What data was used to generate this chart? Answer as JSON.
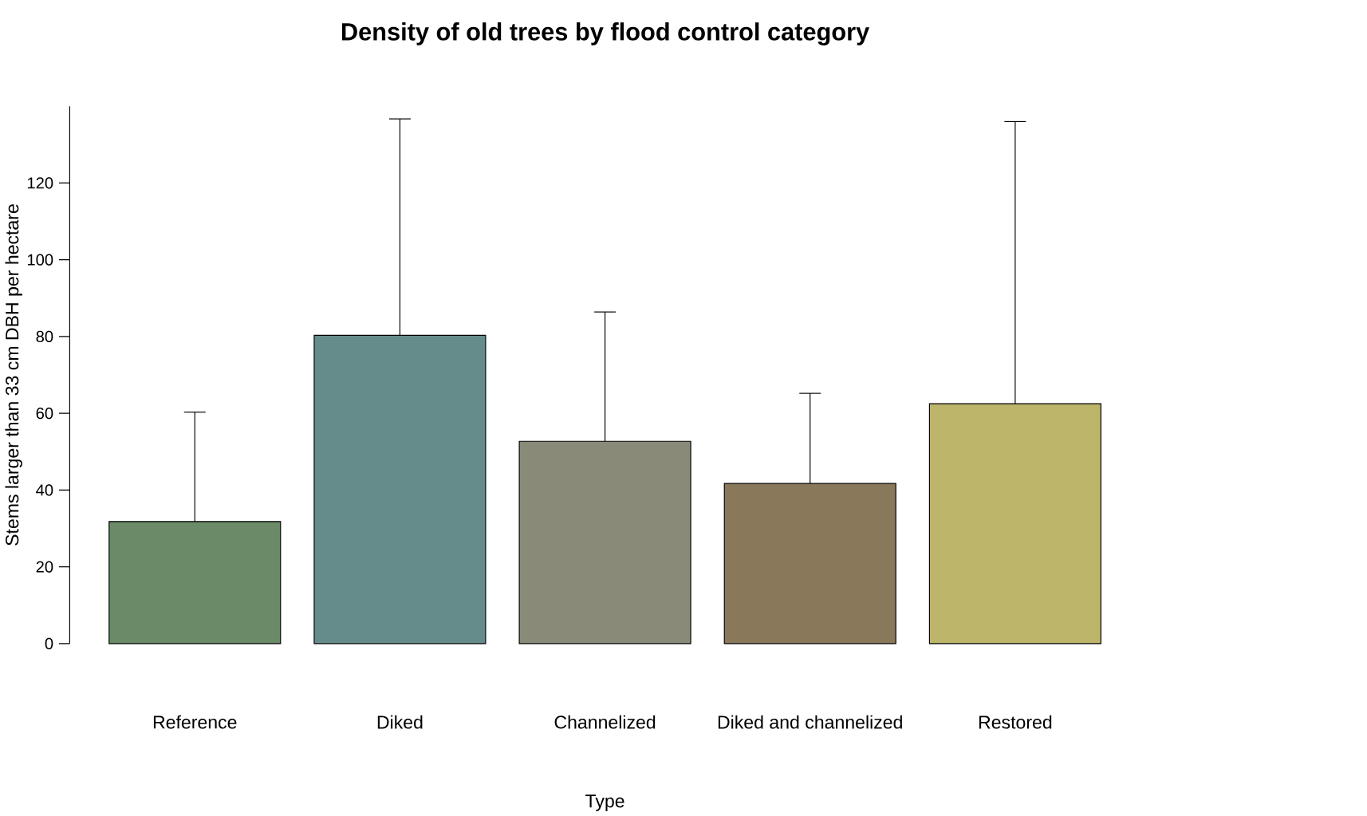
{
  "chart_data": {
    "type": "bar",
    "title": "Density of old trees by flood control category",
    "xlabel": "Type",
    "ylabel": "Stems larger than 33 cm DBH per hectare",
    "categories": [
      "Reference",
      "Diked",
      "Channelized",
      "Diked and channelized",
      "Restored"
    ],
    "values": [
      31.8,
      80.3,
      52.7,
      41.7,
      62.5
    ],
    "errors": [
      [
        31.8,
        60.3
      ],
      [
        80.3,
        136.7
      ],
      [
        52.7,
        86.4
      ],
      [
        41.7,
        65.2
      ],
      [
        62.5,
        136.0
      ]
    ],
    "colors": [
      "#6a8a68",
      "#658c8a",
      "#8a8a78",
      "#8a785a",
      "#bdb56a"
    ],
    "ylim": [
      0,
      140
    ],
    "yticks": [
      0,
      20,
      40,
      60,
      80,
      100,
      120
    ]
  }
}
